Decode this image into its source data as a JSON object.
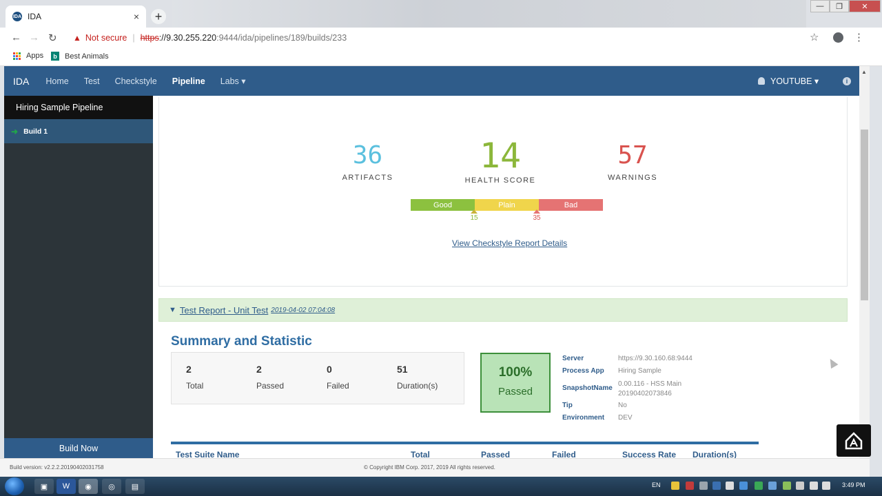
{
  "browser": {
    "tab_title": "IDA",
    "tab_favicon": "IDA",
    "new_tab": "+",
    "tab_close": "×",
    "security_label": "Not secure",
    "url_scheme": "https",
    "url_host": "://9.30.255.220",
    "url_path": ":9444/ida/pipelines/189/builds/233",
    "bookmarks": [
      {
        "label": "Apps"
      },
      {
        "label": "Best Animals"
      }
    ],
    "window_controls": {
      "minimize": "—",
      "maximize": "❐",
      "close": "✕"
    }
  },
  "navbar": {
    "brand": "IDA",
    "items": [
      {
        "label": "Home"
      },
      {
        "label": "Test"
      },
      {
        "label": "Checkstyle"
      },
      {
        "label": "Pipeline"
      },
      {
        "label": "Labs ▾"
      }
    ],
    "user": "YOUTUBE ▾",
    "info_icon": "i"
  },
  "sidebar": {
    "title": "Hiring Sample Pipeline",
    "build_item": "Build 1",
    "build_now": "Build Now"
  },
  "checkstyle": {
    "artifacts": {
      "value": "36",
      "label": "ARTIFACTS",
      "color": "#5bc0de"
    },
    "health": {
      "value": "14",
      "label": "HEALTH SCORE",
      "color": "#8cb73b"
    },
    "warnings": {
      "value": "57",
      "label": "WARNINGS",
      "color": "#d9534f"
    },
    "scale": [
      {
        "label": "Good",
        "color": "#8cc13f"
      },
      {
        "label": "Plain",
        "color": "#f0d54b"
      },
      {
        "label": "Bad",
        "color": "#e57373"
      }
    ],
    "thresholds": [
      "15",
      "35"
    ],
    "details_link": "View Checkstyle Report Details"
  },
  "test_report": {
    "title": "Test Report - Unit Test",
    "date": "2019-04-02 07:04:08",
    "summary_title": "Summary and Statistic",
    "stats": [
      {
        "value": "2",
        "label": "Total"
      },
      {
        "value": "2",
        "label": "Passed"
      },
      {
        "value": "0",
        "label": "Failed"
      },
      {
        "value": "51",
        "label": "Duration(s)"
      }
    ],
    "pass_rate": "100%",
    "pass_label": "Passed",
    "details": {
      "server_key": "Server",
      "server": "https://9.30.160.68:9444",
      "app_key": "Process App",
      "app": "Hiring Sample",
      "snapshot_key": "SnapshotName",
      "snapshot_1": "0.00.116 - HSS Main",
      "snapshot_2": "20190402073846",
      "tip_key": "Tip",
      "tip": "No",
      "env_key": "Environment",
      "env": "DEV"
    },
    "table_headers": [
      "Test Suite Name",
      "Total",
      "Passed",
      "Failed",
      "Success Rate",
      "Duration(s)"
    ]
  },
  "footer": {
    "build_version": "Build version: v2.2.2.20190402031758",
    "copyright": "© Copyright IBM Corp. 2017, 2019  All rights reserved."
  },
  "taskbar": {
    "lang": "EN",
    "time": "3:49 PM"
  }
}
